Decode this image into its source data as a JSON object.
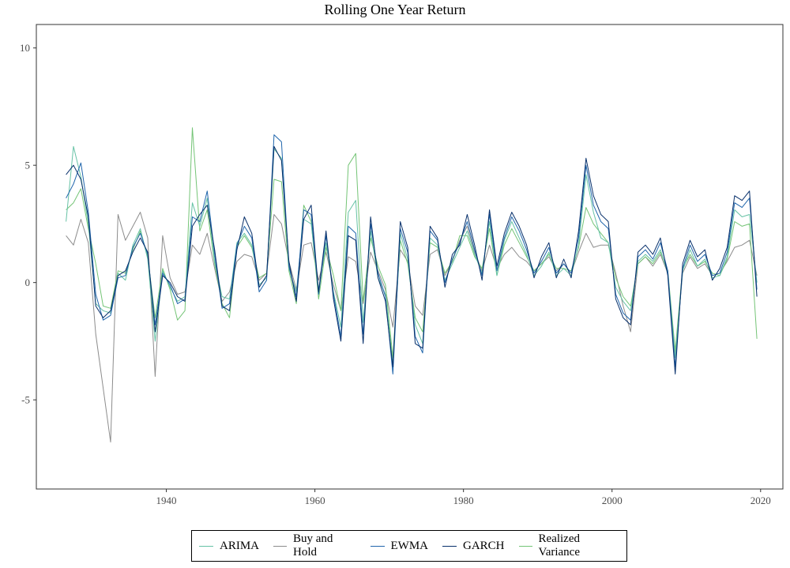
{
  "chart_data": {
    "type": "line",
    "title": "Rolling One Year Return",
    "xlabel": "",
    "ylabel": "",
    "xlim": [
      1922.5,
      2023
    ],
    "ylim": [
      -8.8,
      11.0
    ],
    "x_ticks": [
      1940,
      1960,
      1980,
      2000,
      2020
    ],
    "y_ticks": [
      -5,
      0,
      5,
      10
    ],
    "y_tick_labels": [
      "-5",
      "0",
      "5",
      "10"
    ],
    "x_tick_labels": [
      "1940",
      "1960",
      "1980",
      "2000",
      "2020"
    ],
    "grid": false,
    "legend_position": "bottom",
    "x": [
      1926.5,
      1927.5,
      1928.5,
      1929.5,
      1930.5,
      1931.5,
      1932.5,
      1933.5,
      1934.5,
      1935.5,
      1936.5,
      1937.5,
      1938.5,
      1939.5,
      1940.5,
      1941.5,
      1942.5,
      1943.5,
      1944.5,
      1945.5,
      1946.5,
      1947.5,
      1948.5,
      1949.5,
      1950.5,
      1951.5,
      1952.5,
      1953.5,
      1954.5,
      1955.5,
      1956.5,
      1957.5,
      1958.5,
      1959.5,
      1960.5,
      1961.5,
      1962.5,
      1963.5,
      1964.5,
      1965.5,
      1966.5,
      1967.5,
      1968.5,
      1969.5,
      1970.5,
      1971.5,
      1972.5,
      1973.5,
      1974.5,
      1975.5,
      1976.5,
      1977.5,
      1978.5,
      1979.5,
      1980.5,
      1981.5,
      1982.5,
      1983.5,
      1984.5,
      1985.5,
      1986.5,
      1987.5,
      1988.5,
      1989.5,
      1990.5,
      1991.5,
      1992.5,
      1993.5,
      1994.5,
      1995.5,
      1996.5,
      1997.5,
      1998.5,
      1999.5,
      2000.5,
      2001.5,
      2002.5,
      2003.5,
      2004.5,
      2005.5,
      2006.5,
      2007.5,
      2008.5,
      2009.5,
      2010.5,
      2011.5,
      2012.5,
      2013.5,
      2014.5,
      2015.5,
      2016.5,
      2017.5,
      2018.5,
      2019.5
    ],
    "series": [
      {
        "name": "ARIMA",
        "color": "#66c2a5",
        "values": [
          2.6,
          5.8,
          4.5,
          2.5,
          -0.9,
          -1.2,
          -1.3,
          0.4,
          0.1,
          1.6,
          2.3,
          1.0,
          -2.5,
          0.5,
          -0.2,
          -0.8,
          -0.6,
          3.4,
          2.4,
          3.6,
          0.9,
          -0.6,
          -0.7,
          1.7,
          2.1,
          1.6,
          -0.1,
          0.2,
          5.7,
          5.3,
          0.6,
          -0.4,
          2.7,
          2.5,
          -0.3,
          1.7,
          -0.4,
          -1.9,
          3.0,
          3.5,
          -1.7,
          2.2,
          0.2,
          -0.5,
          -3.5,
          2.1,
          1.0,
          -1.8,
          -2.6,
          1.9,
          1.6,
          0.1,
          0.8,
          1.5,
          2.2,
          1.2,
          0.4,
          2.6,
          0.3,
          1.8,
          2.6,
          1.9,
          1.2,
          0.3,
          0.7,
          1.3,
          0.3,
          0.6,
          0.3,
          1.6,
          4.6,
          3.0,
          1.9,
          1.7,
          -0.2,
          -0.8,
          -1.2,
          0.9,
          1.2,
          0.9,
          1.4,
          0.4,
          -3.2,
          0.5,
          1.4,
          0.7,
          1.0,
          0.2,
          0.3,
          1.1,
          3.1,
          2.8,
          2.9,
          0.0
        ]
      },
      {
        "name": "Buy and Hold",
        "color": "#8c8c8c",
        "values": [
          2.0,
          1.6,
          2.7,
          1.7,
          -2.2,
          -4.5,
          -6.8,
          2.9,
          1.8,
          2.4,
          3.0,
          1.9,
          -4.0,
          2.0,
          0.2,
          -0.5,
          -0.4,
          1.6,
          1.2,
          2.1,
          0.6,
          -0.8,
          -0.4,
          0.9,
          1.2,
          1.1,
          0.1,
          0.4,
          2.9,
          2.5,
          0.9,
          -0.3,
          1.6,
          1.7,
          0.1,
          1.3,
          -0.1,
          -1.2,
          1.1,
          0.9,
          -0.9,
          1.3,
          0.5,
          -0.3,
          -1.9,
          1.4,
          0.9,
          -1.0,
          -1.4,
          1.2,
          1.4,
          0.3,
          0.9,
          1.8,
          2.4,
          1.3,
          0.5,
          1.6,
          0.6,
          1.2,
          1.5,
          1.1,
          0.9,
          0.5,
          0.8,
          1.1,
          0.5,
          0.8,
          0.4,
          1.3,
          2.1,
          1.5,
          1.6,
          1.6,
          0.4,
          -1.0,
          -2.1,
          0.8,
          1.1,
          0.7,
          1.2,
          0.4,
          -3.1,
          0.4,
          1.1,
          0.6,
          0.8,
          0.3,
          0.4,
          0.9,
          1.5,
          1.6,
          1.8,
          0.3
        ]
      },
      {
        "name": "EWMA",
        "color": "#2166ac",
        "values": [
          3.6,
          4.2,
          5.1,
          3.0,
          -0.5,
          -1.6,
          -1.4,
          0.2,
          0.3,
          1.5,
          2.1,
          1.2,
          -1.8,
          0.4,
          -0.1,
          -0.9,
          -0.7,
          2.8,
          2.6,
          3.9,
          1.2,
          -1.1,
          -0.9,
          1.6,
          2.4,
          1.9,
          -0.4,
          0.1,
          6.3,
          6.0,
          0.7,
          -0.6,
          3.1,
          2.9,
          -0.5,
          2.0,
          -0.5,
          -2.3,
          2.4,
          2.1,
          -2.2,
          2.5,
          0.4,
          -0.6,
          -3.9,
          2.3,
          1.3,
          -2.3,
          -3.0,
          2.2,
          1.8,
          0.0,
          1.0,
          1.7,
          2.6,
          1.4,
          0.3,
          2.9,
          0.5,
          1.9,
          2.8,
          2.2,
          1.4,
          0.4,
          0.9,
          1.5,
          0.4,
          0.8,
          0.4,
          1.9,
          5.0,
          3.3,
          2.6,
          2.3,
          -0.5,
          -1.3,
          -1.6,
          1.1,
          1.4,
          1.0,
          1.7,
          0.5,
          -3.6,
          0.6,
          1.6,
          0.9,
          1.2,
          0.3,
          0.4,
          1.3,
          3.4,
          3.2,
          3.6,
          -0.3
        ]
      },
      {
        "name": "GARCH",
        "color": "#08306b",
        "values": [
          4.6,
          5.0,
          4.4,
          2.8,
          -1.0,
          -1.5,
          -1.2,
          0.3,
          0.5,
          1.3,
          1.9,
          1.3,
          -2.1,
          0.3,
          0.0,
          -0.6,
          -0.8,
          2.4,
          2.9,
          3.3,
          1.4,
          -1.0,
          -1.2,
          1.4,
          2.8,
          2.1,
          -0.2,
          0.3,
          5.8,
          5.2,
          0.9,
          -0.8,
          2.7,
          3.3,
          -0.4,
          2.2,
          -0.7,
          -2.5,
          2.0,
          1.8,
          -2.6,
          2.8,
          0.2,
          -0.8,
          -3.6,
          2.6,
          1.5,
          -2.6,
          -2.8,
          2.4,
          1.9,
          -0.2,
          1.2,
          1.6,
          2.9,
          1.6,
          0.1,
          3.1,
          0.7,
          2.1,
          3.0,
          2.4,
          1.6,
          0.2,
          1.1,
          1.7,
          0.2,
          1.0,
          0.2,
          2.2,
          5.3,
          3.7,
          2.9,
          2.6,
          -0.7,
          -1.5,
          -1.8,
          1.3,
          1.6,
          1.2,
          1.9,
          0.3,
          -3.9,
          0.8,
          1.8,
          1.1,
          1.4,
          0.1,
          0.6,
          1.5,
          3.7,
          3.5,
          3.9,
          -0.6
        ]
      },
      {
        "name": "Realized Variance",
        "color": "#74c476",
        "values": [
          3.1,
          3.4,
          4.0,
          2.3,
          0.8,
          -1.0,
          -1.1,
          0.5,
          0.4,
          1.4,
          2.2,
          1.1,
          -1.5,
          0.6,
          -0.3,
          -1.6,
          -1.2,
          6.6,
          2.2,
          3.1,
          0.8,
          -0.9,
          -1.5,
          1.5,
          2.0,
          1.5,
          0.2,
          0.4,
          4.4,
          4.3,
          0.5,
          -0.9,
          3.3,
          2.6,
          -0.7,
          1.5,
          0.3,
          -1.2,
          5.0,
          5.5,
          -0.8,
          1.9,
          0.7,
          -0.1,
          -3.2,
          1.8,
          0.8,
          -1.5,
          -2.1,
          1.7,
          1.5,
          0.4,
          0.9,
          2.0,
          2.0,
          1.1,
          0.6,
          2.3,
          0.3,
          1.6,
          2.3,
          1.7,
          1.1,
          0.5,
          0.8,
          1.2,
          0.6,
          0.6,
          0.5,
          1.5,
          3.2,
          2.5,
          2.1,
          1.7,
          0.2,
          -0.6,
          -1.0,
          0.8,
          1.1,
          0.8,
          1.3,
          0.5,
          -2.9,
          0.6,
          1.2,
          0.7,
          0.9,
          0.4,
          0.3,
          1.0,
          2.6,
          2.4,
          2.5,
          -2.4
        ]
      }
    ]
  }
}
